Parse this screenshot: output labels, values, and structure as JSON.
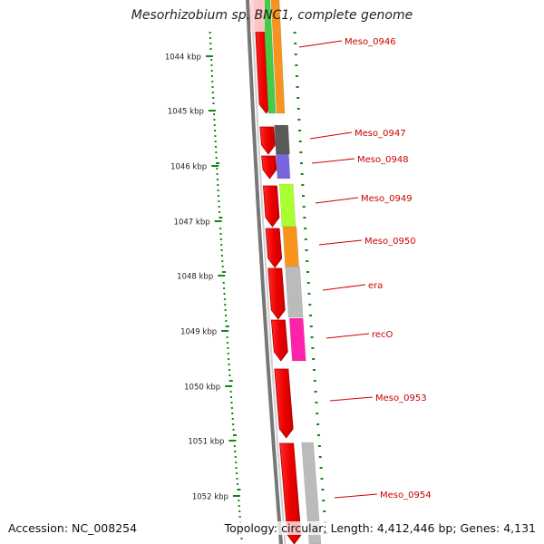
{
  "title": "Mesorhizobium sp. BNC1, complete genome",
  "footer": {
    "accession": "Accession: NC_008254",
    "summary": "Topology: circular; Length: 4,412,446 bp; Genes: 4,131"
  },
  "kbp_labels": [
    "1044 kbp",
    "1045 kbp",
    "1046 kbp",
    "1047 kbp",
    "1048 kbp",
    "1049 kbp",
    "1050 kbp",
    "1051 kbp",
    "1052 kbp"
  ],
  "colors": {
    "cds": "#ff0000",
    "label": "#cc0000",
    "ruler": "#118811",
    "backbone": "#777777"
  },
  "genes": [
    {
      "name": "Meso_0946",
      "color": "#f7941d"
    },
    {
      "name": "",
      "color": "#44cc44"
    },
    {
      "name": "Meso_0947",
      "color": "#5a5a5a"
    },
    {
      "name": "Meso_0948",
      "color": "#7766dd"
    },
    {
      "name": "Meso_0949",
      "color": "#aaff33"
    },
    {
      "name": "Meso_0950",
      "color": "#f7941d"
    },
    {
      "name": "era",
      "color": "#bbbbbb"
    },
    {
      "name": "recO",
      "color": "#ff22aa"
    },
    {
      "name": "Meso_0953",
      "color": ""
    },
    {
      "name": "Meso_0954",
      "color": "#bbbbbb"
    }
  ]
}
